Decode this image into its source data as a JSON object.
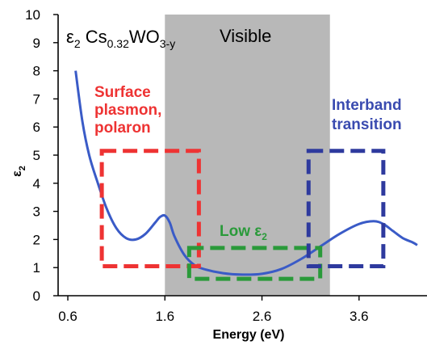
{
  "chart_data": {
    "type": "line",
    "xlabel": "Energy  (eV)",
    "ylabel": "ε",
    "ylabel_sub": "2",
    "xlim": [
      0.5,
      4.3
    ],
    "ylim": [
      0,
      10
    ],
    "x_ticks": [
      0.6,
      1.6,
      2.6,
      3.6
    ],
    "x_tick_labels": [
      "0.6",
      "1.6",
      "2.6",
      "3.6"
    ],
    "y_ticks": [
      0,
      1,
      2,
      3,
      4,
      5,
      6,
      7,
      8,
      9,
      10
    ],
    "y_tick_labels": [
      "0",
      "1",
      "2",
      "3",
      "4",
      "5",
      "6",
      "7",
      "8",
      "9",
      "10"
    ],
    "grid": false,
    "series": [
      {
        "color": "#3a5bc7",
        "x": [
          0.68,
          0.75,
          0.82,
          0.9,
          1.0,
          1.1,
          1.2,
          1.3,
          1.4,
          1.5,
          1.55,
          1.6,
          1.65,
          1.7,
          1.8,
          1.9,
          2.0,
          2.2,
          2.4,
          2.6,
          2.8,
          3.0,
          3.2,
          3.4,
          3.6,
          3.75,
          3.85,
          3.95,
          4.05,
          4.15,
          4.2
        ],
        "y": [
          8.0,
          6.2,
          5.0,
          4.1,
          3.1,
          2.4,
          2.05,
          2.0,
          2.2,
          2.6,
          2.8,
          2.85,
          2.6,
          2.1,
          1.45,
          1.1,
          0.95,
          0.8,
          0.75,
          0.78,
          0.95,
          1.3,
          1.75,
          2.2,
          2.55,
          2.65,
          2.55,
          2.3,
          2.05,
          1.9,
          1.8
        ]
      }
    ],
    "visible_band": {
      "x_range": [
        1.6,
        3.3
      ],
      "color": "#b8b8b8"
    },
    "annotations": {
      "formula": {
        "eps": "ε",
        "eps_sub": "2",
        "name": "Cs",
        "cs_sub": "0.32",
        "wo": "WO",
        "wo_sub": "3-y"
      },
      "visible": "Visible",
      "surface_lines": [
        "Surface",
        "plasmon,",
        "polaron"
      ],
      "interband_lines": [
        "Interband",
        "transition"
      ],
      "low_eps": {
        "text": "Low ε",
        "sub": "2"
      }
    },
    "boxes": [
      {
        "id": "red-box",
        "color": "#ee3333",
        "x": [
          0.95,
          1.95
        ],
        "y": [
          1.05,
          5.15
        ]
      },
      {
        "id": "green-box",
        "color": "#2a9a3a",
        "x": [
          1.85,
          3.2
        ],
        "y": [
          0.6,
          1.7
        ]
      },
      {
        "id": "blue-box",
        "color": "#2e3a9e",
        "x": [
          3.08,
          3.85
        ],
        "y": [
          1.05,
          5.15
        ]
      }
    ],
    "colors": {
      "surface_text": "#ee3333",
      "interband_text": "#3a4bb0",
      "low_text": "#2a9a3a"
    }
  }
}
